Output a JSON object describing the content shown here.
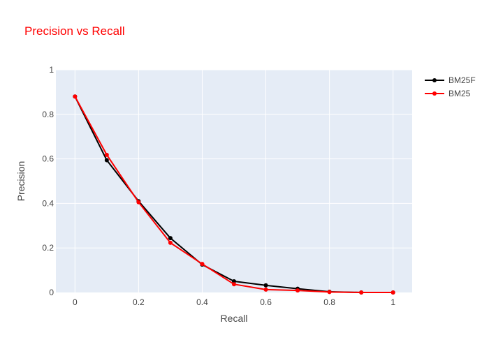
{
  "chart_data": {
    "type": "line",
    "title": "Precision vs Recall",
    "xlabel": "Recall",
    "ylabel": "Precision",
    "xlim": [
      -0.06,
      1.06
    ],
    "ylim": [
      0,
      1
    ],
    "x_ticks": [
      {
        "value": 0,
        "label": "0"
      },
      {
        "value": 0.2,
        "label": "0.2"
      },
      {
        "value": 0.4,
        "label": "0.4"
      },
      {
        "value": 0.6,
        "label": "0.6"
      },
      {
        "value": 0.8,
        "label": "0.8"
      },
      {
        "value": 1,
        "label": "1"
      }
    ],
    "y_ticks": [
      {
        "value": 0,
        "label": "0"
      },
      {
        "value": 0.2,
        "label": "0.2"
      },
      {
        "value": 0.4,
        "label": "0.4"
      },
      {
        "value": 0.6,
        "label": "0.6"
      },
      {
        "value": 0.8,
        "label": "0.8"
      },
      {
        "value": 1,
        "label": "1"
      }
    ],
    "grid": true,
    "legend_position": "top-right",
    "x": [
      0,
      0.1,
      0.2,
      0.3,
      0.4,
      0.5,
      0.6,
      0.7,
      0.8,
      0.9,
      1.0
    ],
    "series": [
      {
        "name": "BM25F",
        "color": "#000000",
        "values": [
          0.88,
          0.594,
          0.41,
          0.244,
          0.125,
          0.05,
          0.032,
          0.017,
          0.003,
          0.0,
          0.0
        ]
      },
      {
        "name": "BM25",
        "color": "#ff0000",
        "values": [
          0.88,
          0.618,
          0.405,
          0.223,
          0.128,
          0.037,
          0.013,
          0.009,
          0.002,
          0.0,
          0.0
        ]
      }
    ]
  },
  "colors": {
    "title": "#ff0000",
    "plot_background": "#e5ecf6",
    "gridline": "#ffffff"
  }
}
